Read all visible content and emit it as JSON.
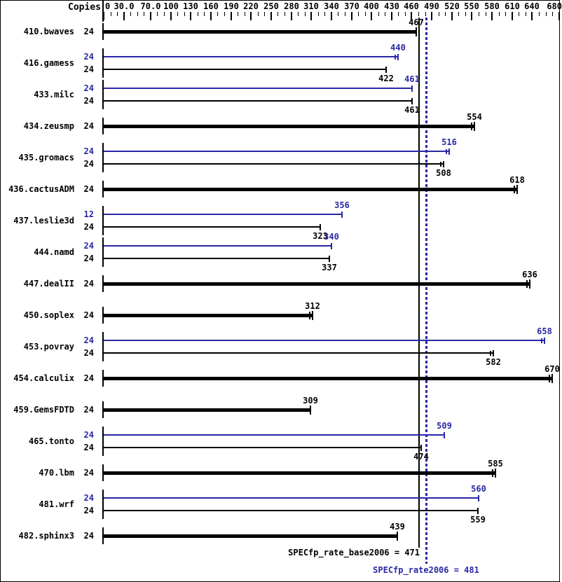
{
  "header": {
    "copies_label": "Copies"
  },
  "colors": {
    "base": "#000000",
    "peak": "#2828a5"
  },
  "summary": {
    "base_label": "SPECfp_rate_base2006 = 471",
    "peak_label": "SPECfp_rate2006 = 481"
  },
  "chart_data": {
    "type": "bar",
    "orientation": "horizontal",
    "title": "",
    "xlabel": "Copies",
    "ylabel": "",
    "axis": {
      "min": 0,
      "max": 683,
      "minor_tick_step": 10,
      "labeled_ticks": [
        {
          "value": 0,
          "label": "0"
        },
        {
          "value": 30,
          "label": "30.0"
        },
        {
          "value": 70,
          "label": "70.0"
        },
        {
          "value": 100,
          "label": "100"
        },
        {
          "value": 130,
          "label": "130"
        },
        {
          "value": 160,
          "label": "160"
        },
        {
          "value": 190,
          "label": "190"
        },
        {
          "value": 220,
          "label": "220"
        },
        {
          "value": 250,
          "label": "250"
        },
        {
          "value": 280,
          "label": "280"
        },
        {
          "value": 310,
          "label": "310"
        },
        {
          "value": 340,
          "label": "340"
        },
        {
          "value": 370,
          "label": "370"
        },
        {
          "value": 400,
          "label": "400"
        },
        {
          "value": 430,
          "label": "430"
        },
        {
          "value": 460,
          "label": "460"
        },
        {
          "value": 490,
          "label": "490"
        },
        {
          "value": 520,
          "label": "520"
        },
        {
          "value": 550,
          "label": "550"
        },
        {
          "value": 580,
          "label": "580"
        },
        {
          "value": 610,
          "label": "610"
        },
        {
          "value": 640,
          "label": "640"
        },
        {
          "value": 680,
          "label": "680"
        }
      ]
    },
    "reference_lines": [
      {
        "name": "base_mean",
        "value": 471,
        "style": "solid",
        "series": "base"
      },
      {
        "name": "peak_mean",
        "value": 481,
        "style": "dotted",
        "series": "peak"
      }
    ],
    "benchmarks": [
      {
        "name": "410.bwaves",
        "bars": [
          {
            "series": "base",
            "copies": 24,
            "value": 467,
            "marker_ticks": 1
          }
        ]
      },
      {
        "name": "416.gamess",
        "bars": [
          {
            "series": "peak",
            "copies": 24,
            "value": 440,
            "marker_ticks": 2
          },
          {
            "series": "base",
            "copies": 24,
            "value": 422,
            "marker_ticks": 1
          }
        ]
      },
      {
        "name": "433.milc",
        "bars": [
          {
            "series": "peak",
            "copies": 24,
            "value": 461,
            "marker_ticks": 1
          },
          {
            "series": "base",
            "copies": 24,
            "value": 461,
            "marker_ticks": 1
          }
        ]
      },
      {
        "name": "434.zeusmp",
        "bars": [
          {
            "series": "base",
            "copies": 24,
            "value": 554,
            "marker_ticks": 2
          }
        ]
      },
      {
        "name": "435.gromacs",
        "bars": [
          {
            "series": "peak",
            "copies": 24,
            "value": 516,
            "marker_ticks": 2
          },
          {
            "series": "base",
            "copies": 24,
            "value": 508,
            "marker_ticks": 2
          }
        ]
      },
      {
        "name": "436.cactusADM",
        "bars": [
          {
            "series": "base",
            "copies": 24,
            "value": 618,
            "marker_ticks": 2
          }
        ]
      },
      {
        "name": "437.leslie3d",
        "bars": [
          {
            "series": "peak",
            "copies": 12,
            "value": 356,
            "marker_ticks": 1
          },
          {
            "series": "base",
            "copies": 24,
            "value": 323,
            "marker_ticks": 1
          }
        ]
      },
      {
        "name": "444.namd",
        "bars": [
          {
            "series": "peak",
            "copies": 24,
            "value": 340,
            "marker_ticks": 1
          },
          {
            "series": "base",
            "copies": 24,
            "value": 337,
            "marker_ticks": 1
          }
        ]
      },
      {
        "name": "447.dealII",
        "bars": [
          {
            "series": "base",
            "copies": 24,
            "value": 636,
            "marker_ticks": 2
          }
        ]
      },
      {
        "name": "450.soplex",
        "bars": [
          {
            "series": "base",
            "copies": 24,
            "value": 312,
            "marker_ticks": 2
          }
        ]
      },
      {
        "name": "453.povray",
        "bars": [
          {
            "series": "peak",
            "copies": 24,
            "value": 658,
            "marker_ticks": 2
          },
          {
            "series": "base",
            "copies": 24,
            "value": 582,
            "marker_ticks": 2
          }
        ]
      },
      {
        "name": "454.calculix",
        "bars": [
          {
            "series": "base",
            "copies": 24,
            "value": 670,
            "marker_ticks": 2
          }
        ]
      },
      {
        "name": "459.GemsFDTD",
        "bars": [
          {
            "series": "base",
            "copies": 24,
            "value": 309,
            "marker_ticks": 1
          }
        ]
      },
      {
        "name": "465.tonto",
        "bars": [
          {
            "series": "peak",
            "copies": 24,
            "value": 509,
            "marker_ticks": 1
          },
          {
            "series": "base",
            "copies": 24,
            "value": 474,
            "marker_ticks": 1
          }
        ]
      },
      {
        "name": "470.lbm",
        "bars": [
          {
            "series": "base",
            "copies": 24,
            "value": 585,
            "marker_ticks": 2
          }
        ]
      },
      {
        "name": "481.wrf",
        "bars": [
          {
            "series": "peak",
            "copies": 24,
            "value": 560,
            "marker_ticks": 1
          },
          {
            "series": "base",
            "copies": 24,
            "value": 559,
            "marker_ticks": 1
          }
        ]
      },
      {
        "name": "482.sphinx3",
        "bars": [
          {
            "series": "base",
            "copies": 24,
            "value": 439,
            "marker_ticks": 1
          }
        ]
      }
    ]
  }
}
